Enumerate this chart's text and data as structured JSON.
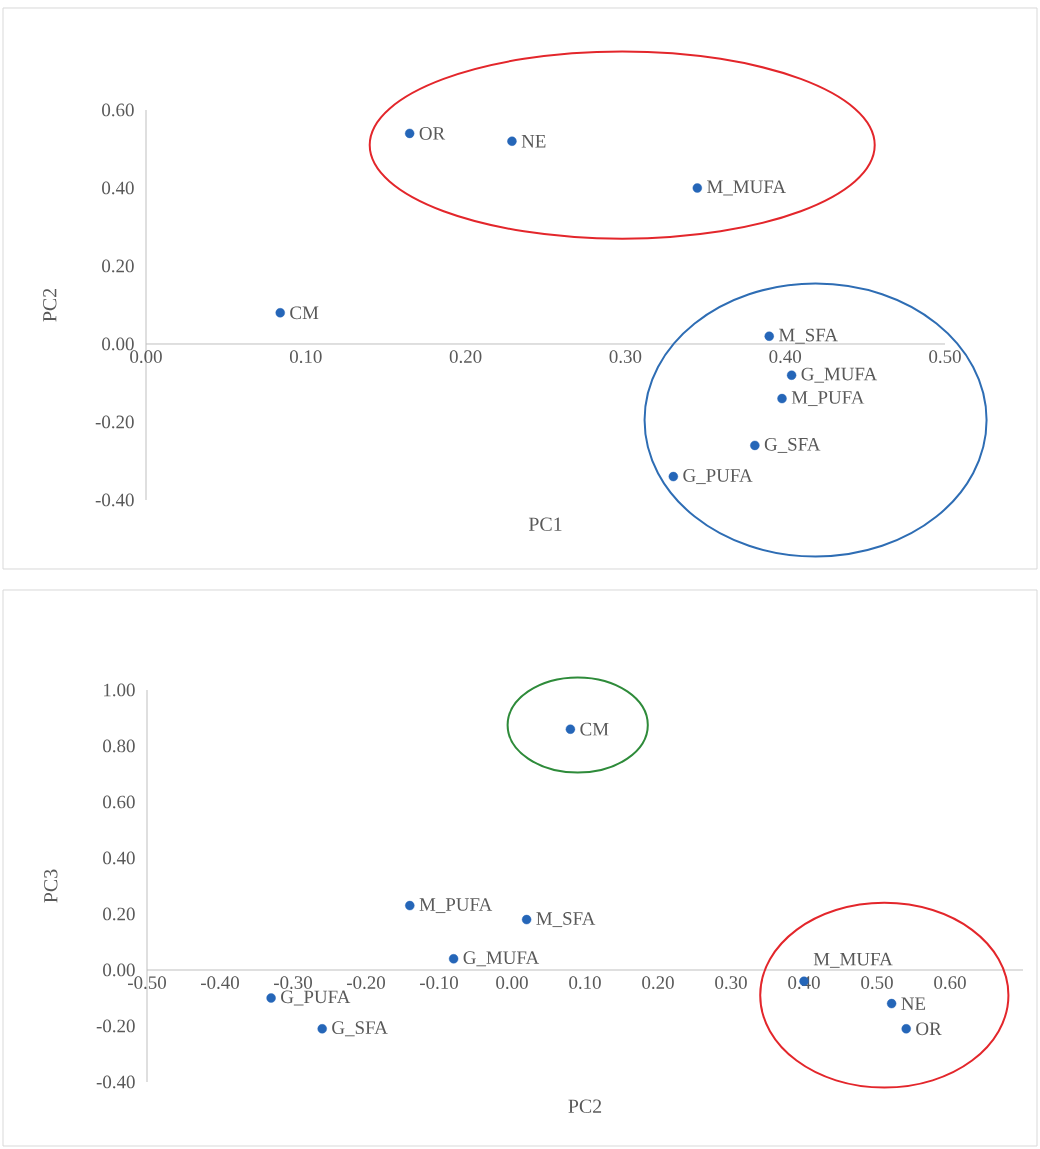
{
  "chart_data": [
    {
      "type": "scatter",
      "xlabel": "PC1",
      "ylabel": "PC2",
      "marker": "circle",
      "xlim": [
        0,
        0.5
      ],
      "ylim": [
        -0.4,
        0.6
      ],
      "xticks": [
        {
          "value": 0,
          "label": "0.00"
        },
        {
          "value": 0.1,
          "label": "0.10"
        },
        {
          "value": 0.2,
          "label": "0.20"
        },
        {
          "value": 0.3,
          "label": "0.30"
        },
        {
          "value": 0.4,
          "label": "0.40"
        },
        {
          "value": 0.5,
          "label": "0.50"
        }
      ],
      "yticks": [
        {
          "value": -0.4,
          "label": "-0.40"
        },
        {
          "value": -0.2,
          "label": "-0.20"
        },
        {
          "value": 0,
          "label": "0.00"
        },
        {
          "value": 0.2,
          "label": "0.20"
        },
        {
          "value": 0.4,
          "label": "0.40"
        },
        {
          "value": 0.6,
          "label": "0.60"
        }
      ],
      "series": [
        {
          "color": "#2566b8",
          "x": [
            0.165,
            0.229,
            0.345,
            0.084,
            0.39,
            0.404,
            0.398,
            0.381,
            0.33
          ],
          "values": [
            0.54,
            0.52,
            0.4,
            0.08,
            0.02,
            -0.08,
            -0.14,
            -0.26,
            -0.34
          ]
        }
      ],
      "annotations": [
        {
          "text": "OR",
          "x": 0.165,
          "y": 0.54
        },
        {
          "text": "NE",
          "x": 0.229,
          "y": 0.52
        },
        {
          "text": "M_MUFA",
          "x": 0.345,
          "y": 0.4
        },
        {
          "text": "CM",
          "x": 0.084,
          "y": 0.08
        },
        {
          "text": "M_SFA",
          "x": 0.39,
          "y": 0.02
        },
        {
          "text": "G_MUFA",
          "x": 0.404,
          "y": -0.08
        },
        {
          "text": "M_PUFA",
          "x": 0.398,
          "y": -0.14
        },
        {
          "text": "G_SFA",
          "x": 0.381,
          "y": -0.26
        },
        {
          "text": "G_PUFA",
          "x": 0.33,
          "y": -0.34
        }
      ]
    },
    {
      "type": "scatter",
      "xlabel": "PC2",
      "ylabel": "PC3",
      "marker": "circle",
      "xlim": [
        -0.5,
        0.7
      ],
      "ylim": [
        -0.4,
        1.0
      ],
      "xticks": [
        {
          "value": -0.5,
          "label": "-0.50"
        },
        {
          "value": -0.4,
          "label": "-0.40"
        },
        {
          "value": -0.3,
          "label": "-0.30"
        },
        {
          "value": -0.2,
          "label": "-0.20"
        },
        {
          "value": -0.1,
          "label": "-0.10"
        },
        {
          "value": 0,
          "label": "0.00"
        },
        {
          "value": 0.1,
          "label": "0.10"
        },
        {
          "value": 0.2,
          "label": "0.20"
        },
        {
          "value": 0.3,
          "label": "0.30"
        },
        {
          "value": 0.4,
          "label": "0.40"
        },
        {
          "value": 0.5,
          "label": "0.50"
        },
        {
          "value": 0.6,
          "label": "0.60"
        }
      ],
      "yticks": [
        {
          "value": -0.4,
          "label": "-0.40"
        },
        {
          "value": -0.2,
          "label": "-0.20"
        },
        {
          "value": 0,
          "label": "0.00"
        },
        {
          "value": 0.2,
          "label": "0.20"
        },
        {
          "value": 0.4,
          "label": "0.40"
        },
        {
          "value": 0.6,
          "label": "0.60"
        },
        {
          "value": 0.8,
          "label": "0.80"
        },
        {
          "value": 1.0,
          "label": "1.00"
        }
      ],
      "series": [
        {
          "color": "#2566b8",
          "x": [
            0.54,
            0.52,
            0.4,
            0.08,
            0.02,
            -0.08,
            -0.14,
            -0.26,
            -0.33
          ],
          "values": [
            -0.21,
            -0.12,
            -0.04,
            0.86,
            0.18,
            0.04,
            0.23,
            -0.21,
            -0.1
          ]
        }
      ],
      "annotations": [
        {
          "text": "OR",
          "x": 0.54,
          "y": -0.21
        },
        {
          "text": "NE",
          "x": 0.52,
          "y": -0.12
        },
        {
          "text": "M_MUFA",
          "x": 0.4,
          "y": -0.04
        },
        {
          "text": "CM",
          "x": 0.08,
          "y": 0.86
        },
        {
          "text": "M_SFA",
          "x": 0.02,
          "y": 0.18
        },
        {
          "text": "G_MUFA",
          "x": -0.08,
          "y": 0.04
        },
        {
          "text": "M_PUFA",
          "x": -0.14,
          "y": 0.23
        },
        {
          "text": "G_SFA",
          "x": -0.26,
          "y": -0.21
        },
        {
          "text": "G_PUFA",
          "x": -0.33,
          "y": -0.1
        }
      ]
    }
  ]
}
